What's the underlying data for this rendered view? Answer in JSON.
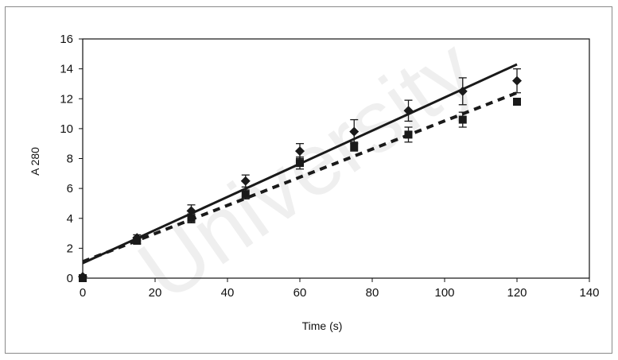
{
  "watermark": "University",
  "chart_data": {
    "type": "scatter",
    "xlabel": "Time (s)",
    "ylabel": "A 280",
    "xlim": [
      0,
      140
    ],
    "ylim": [
      0,
      16
    ],
    "x_ticks": [
      0,
      20,
      40,
      60,
      80,
      100,
      120,
      140
    ],
    "y_ticks": [
      0,
      2,
      4,
      6,
      8,
      10,
      12,
      14,
      16
    ],
    "grid": false,
    "legend": "none",
    "series": [
      {
        "marker": "diamond",
        "color": "#1a1a1a",
        "x": [
          0,
          15,
          30,
          45,
          60,
          75,
          90,
          105,
          120
        ],
        "y": [
          0.1,
          2.7,
          4.5,
          6.5,
          8.5,
          9.8,
          11.2,
          12.5,
          13.2
        ],
        "error": [
          0,
          0.2,
          0.4,
          0.4,
          0.5,
          0.8,
          0.7,
          0.9,
          0.8
        ],
        "trendline": {
          "style": "solid",
          "x": [
            0,
            120
          ],
          "y": [
            1.0,
            14.3
          ]
        }
      },
      {
        "marker": "square",
        "color": "#1a1a1a",
        "x": [
          0,
          15,
          30,
          45,
          60,
          75,
          90,
          105,
          120
        ],
        "y": [
          0.0,
          2.5,
          4.0,
          5.6,
          7.7,
          8.8,
          9.6,
          10.6,
          11.8
        ],
        "error": [
          0,
          0.2,
          0.3,
          0.3,
          0.4,
          0.3,
          0.5,
          0.5,
          0.2
        ],
        "trendline": {
          "style": "dashed",
          "x": [
            0,
            120
          ],
          "y": [
            1.1,
            12.4
          ]
        }
      }
    ]
  }
}
